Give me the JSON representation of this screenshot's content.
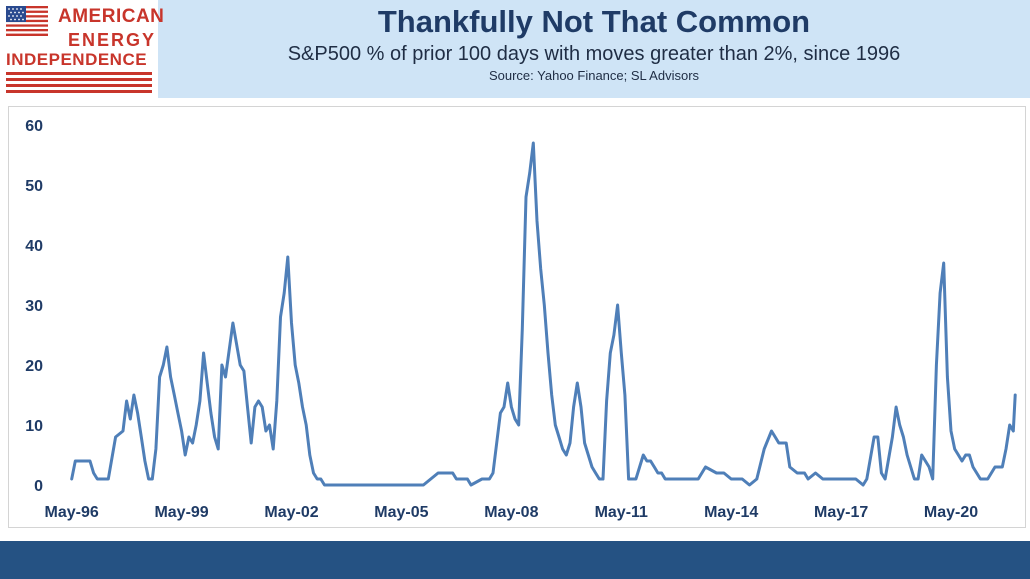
{
  "logo": {
    "line1": "AMERICAN",
    "line2": "ENERGY",
    "line3": "INDEPENDENCE",
    "flag_icon": "us-flag-icon",
    "red": "#c8352b",
    "blue": "#2a4a8f"
  },
  "header": {
    "title": "Thankfully Not That Common",
    "subtitle": "S&P500 % of prior 100 days with moves greater than 2%, since 1996",
    "source": "Source: Yahoo Finance; SL Advisors"
  },
  "colors": {
    "header_bg": "#cfe4f6",
    "title": "#1f3b66",
    "line": "#4f7fb8",
    "footer": "#255283"
  },
  "chart_data": {
    "type": "line",
    "title": "Thankfully Not That Common",
    "subtitle": "S&P500 % of prior 100 days with moves greater than 2%, since 1996",
    "xlabel": "",
    "ylabel": "",
    "ylim": [
      0,
      60
    ],
    "yticks": [
      0,
      10,
      20,
      30,
      40,
      50,
      60
    ],
    "xlim": [
      1996.0,
      2022.2
    ],
    "xticks": [
      {
        "x": 1996.4,
        "label": "May-96"
      },
      {
        "x": 1999.4,
        "label": "May-99"
      },
      {
        "x": 2002.4,
        "label": "May-02"
      },
      {
        "x": 2005.4,
        "label": "May-05"
      },
      {
        "x": 2008.4,
        "label": "May-08"
      },
      {
        "x": 2011.4,
        "label": "May-11"
      },
      {
        "x": 2014.4,
        "label": "May-14"
      },
      {
        "x": 2017.4,
        "label": "May-17"
      },
      {
        "x": 2020.4,
        "label": "May-20"
      }
    ],
    "grid": false,
    "legend": "none",
    "series": [
      {
        "name": "",
        "x": [
          1996.4,
          1996.5,
          1996.6,
          1996.9,
          1997.0,
          1997.1,
          1997.4,
          1997.6,
          1997.8,
          1997.9,
          1998.0,
          1998.1,
          1998.2,
          1998.3,
          1998.4,
          1998.5,
          1998.6,
          1998.7,
          1998.8,
          1998.9,
          1999.0,
          1999.1,
          1999.2,
          1999.3,
          1999.4,
          1999.5,
          1999.6,
          1999.7,
          1999.8,
          1999.9,
          2000.0,
          2000.1,
          2000.2,
          2000.3,
          2000.4,
          2000.5,
          2000.6,
          2000.8,
          2001.0,
          2001.1,
          2001.2,
          2001.3,
          2001.4,
          2001.5,
          2001.6,
          2001.7,
          2001.8,
          2001.9,
          2002.0,
          2002.1,
          2002.2,
          2002.3,
          2002.4,
          2002.5,
          2002.6,
          2002.7,
          2002.8,
          2002.9,
          2003.0,
          2003.1,
          2003.2,
          2003.3,
          2003.4,
          2003.6,
          2003.8,
          2004.0,
          2004.2,
          2004.6,
          2005.0,
          2005.6,
          2006.0,
          2006.4,
          2006.5,
          2006.8,
          2006.9,
          2007.2,
          2007.3,
          2007.6,
          2007.7,
          2007.8,
          2007.9,
          2008.0,
          2008.1,
          2008.2,
          2008.3,
          2008.4,
          2008.5,
          2008.6,
          2008.7,
          2008.8,
          2008.9,
          2009.0,
          2009.1,
          2009.2,
          2009.3,
          2009.4,
          2009.5,
          2009.6,
          2009.7,
          2009.8,
          2009.9,
          2010.0,
          2010.1,
          2010.2,
          2010.3,
          2010.4,
          2010.5,
          2010.6,
          2010.7,
          2010.8,
          2010.9,
          2011.0,
          2011.1,
          2011.2,
          2011.3,
          2011.4,
          2011.5,
          2011.6,
          2011.7,
          2011.8,
          2011.9,
          2012.0,
          2012.1,
          2012.2,
          2012.3,
          2012.4,
          2012.5,
          2012.6,
          2012.8,
          2013.0,
          2013.2,
          2013.4,
          2013.5,
          2013.7,
          2014.0,
          2014.2,
          2014.4,
          2014.7,
          2014.9,
          2015.1,
          2015.3,
          2015.5,
          2015.6,
          2015.7,
          2015.9,
          2016.0,
          2016.2,
          2016.4,
          2016.5,
          2016.7,
          2016.9,
          2017.1,
          2017.3,
          2017.5,
          2017.8,
          2018.0,
          2018.1,
          2018.3,
          2018.4,
          2018.5,
          2018.6,
          2018.8,
          2018.9,
          2019.0,
          2019.1,
          2019.2,
          2019.4,
          2019.5,
          2019.6,
          2019.7,
          2019.8,
          2019.9,
          2020.0,
          2020.1,
          2020.2,
          2020.3,
          2020.4,
          2020.5,
          2020.6,
          2020.7,
          2020.8,
          2020.9,
          2021.0,
          2021.2,
          2021.4,
          2021.6,
          2021.8,
          2021.9,
          2022.0,
          2022.1,
          2022.15
        ],
        "values": [
          1,
          4,
          4,
          4,
          2,
          1,
          1,
          8,
          9,
          14,
          11,
          15,
          12,
          8,
          4,
          1,
          1,
          6,
          18,
          20,
          23,
          18,
          15,
          12,
          9,
          5,
          8,
          7,
          10,
          14,
          22,
          17,
          12,
          8,
          6,
          20,
          18,
          27,
          20,
          19,
          13,
          7,
          13,
          14,
          13,
          9,
          10,
          6,
          14,
          28,
          32,
          38,
          27,
          20,
          17,
          13,
          10,
          5,
          2,
          1,
          1,
          0,
          0,
          0,
          0,
          0,
          0,
          0,
          0,
          0,
          0,
          2,
          2,
          2,
          1,
          1,
          0,
          1,
          1,
          1,
          2,
          7,
          12,
          13,
          17,
          13,
          11,
          10,
          26,
          48,
          52,
          57,
          44,
          36,
          30,
          22,
          15,
          10,
          8,
          6,
          5,
          7,
          13,
          17,
          13,
          7,
          5,
          3,
          2,
          1,
          1,
          14,
          22,
          25,
          30,
          22,
          15,
          1,
          1,
          1,
          3,
          5,
          4,
          4,
          3,
          2,
          2,
          1,
          1,
          1,
          1,
          1,
          1,
          3,
          2,
          2,
          1,
          1,
          0,
          1,
          6,
          9,
          8,
          7,
          7,
          3,
          2,
          2,
          1,
          2,
          1,
          1,
          1,
          1,
          1,
          0,
          1,
          8,
          8,
          2,
          1,
          8,
          13,
          10,
          8,
          5,
          1,
          1,
          5,
          4,
          3,
          1,
          20,
          32,
          37,
          18,
          9,
          6,
          5,
          4,
          5,
          5,
          3,
          1,
          1,
          3,
          3,
          6,
          10,
          9,
          15
        ]
      }
    ]
  }
}
